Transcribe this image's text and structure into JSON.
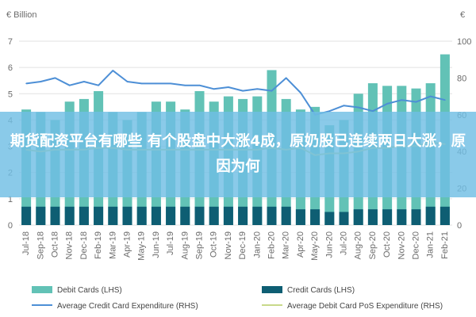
{
  "chart_data": {
    "type": "bar",
    "unit_left": "€ Billion",
    "unit_right": "€",
    "categories": [
      "Jul-18",
      "Sep-18",
      "Oct-18",
      "Nov-18",
      "Dec-18",
      "Feb-19",
      "Mar-19",
      "Apr-19",
      "May-19",
      "Jun-19",
      "Jul-19",
      "Aug-19",
      "Sep-19",
      "Oct-19",
      "Nov-19",
      "Dec-19",
      "Jan-20",
      "Feb-20",
      "Mar-20",
      "Apr-20",
      "May-20",
      "Jun-20",
      "Jul-20",
      "Aug-20",
      "Sep-20",
      "Oct-20",
      "Nov-20",
      "Dec-20",
      "Jan-21",
      "Feb-21"
    ],
    "x_tick_labels": [
      "Jul-18",
      "Sep-18",
      "Oct-18",
      "Nov-18",
      "Dec-18",
      "Feb-19",
      "Mar-19",
      "Apr-19",
      "May-19",
      "Jun-19",
      "Jul-19",
      "Aug-19",
      "Sep-19",
      "Oct-19",
      "Nov-19",
      "Dec-19",
      "Jan-20",
      "Feb-20",
      "Mar-20",
      "Apr-20",
      "May-20",
      "Jun-20",
      "Jul-20",
      "Aug-20",
      "Sep-20",
      "Oct-20",
      "Nov-20",
      "Dec-20",
      "Jan-21",
      "Feb-21"
    ],
    "y_left": {
      "min": 0,
      "max": 7,
      "ticks": [
        0,
        1,
        2,
        3,
        4,
        5,
        6,
        7
      ]
    },
    "y_right": {
      "min": 0,
      "max": 100,
      "ticks": [
        0,
        20,
        40,
        60,
        80,
        100
      ]
    },
    "grid": true,
    "legend_position": "bottom",
    "series": [
      {
        "name": "Debit Cards (LHS)",
        "type": "bar",
        "axis": "left",
        "color": "#62c2b6",
        "values": [
          4.4,
          4.3,
          4.0,
          4.7,
          4.8,
          5.1,
          4.3,
          4.0,
          4.3,
          4.7,
          4.7,
          4.4,
          5.1,
          4.7,
          4.9,
          4.8,
          4.9,
          5.9,
          4.8,
          4.4,
          4.5,
          3.8,
          4.0,
          5.0,
          5.4,
          5.3,
          5.3,
          5.2,
          5.4,
          6.5
        ]
      },
      {
        "name": "Credit Cards (LHS)",
        "type": "bar",
        "axis": "left",
        "color": "#0e5e73",
        "values": [
          0.7,
          0.7,
          0.7,
          0.7,
          0.7,
          0.7,
          0.7,
          0.7,
          0.7,
          0.7,
          0.7,
          0.7,
          0.7,
          0.7,
          0.7,
          0.7,
          0.7,
          0.7,
          0.7,
          0.6,
          0.6,
          0.5,
          0.5,
          0.6,
          0.6,
          0.6,
          0.6,
          0.6,
          0.7,
          0.7
        ]
      },
      {
        "name": "Average Credit Card Expenditure (RHS)",
        "type": "line",
        "axis": "right",
        "color": "#4d8fd6",
        "values": [
          77,
          78,
          80,
          76,
          78,
          76,
          84,
          78,
          77,
          77,
          77,
          76,
          76,
          74,
          75,
          73,
          74,
          73,
          80,
          72,
          60,
          62,
          65,
          64,
          62,
          66,
          68,
          67,
          70,
          68
        ]
      },
      {
        "name": "Average Debit Card PoS Expenditure (RHS)",
        "type": "line",
        "axis": "right",
        "color": "#c8d98a",
        "values": [
          41,
          40,
          41,
          41,
          41,
          42,
          42,
          41,
          41,
          41,
          41,
          41,
          41,
          41,
          41,
          41,
          41,
          42,
          41,
          42,
          38,
          39,
          39,
          40,
          42,
          42,
          43,
          43,
          45,
          44
        ]
      }
    ]
  },
  "overlay": {
    "title": "期货配资平台有哪些 有个股盘中大涨4成，原奶股已连续两日大涨，原因为何"
  }
}
